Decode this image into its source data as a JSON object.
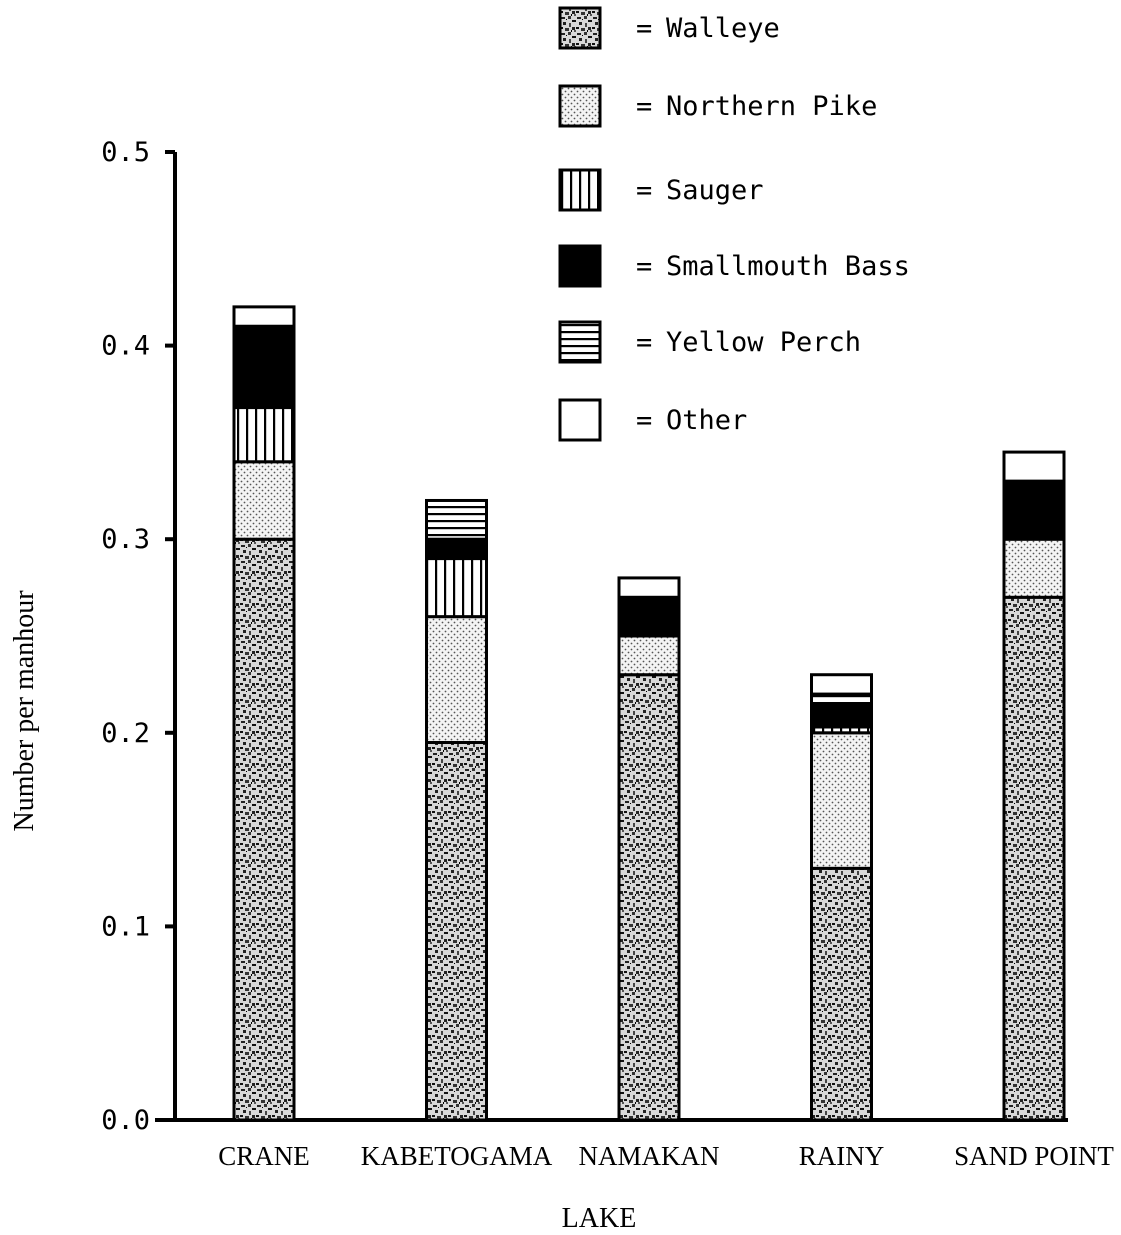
{
  "chart_data": {
    "type": "bar",
    "stacked": true,
    "title": "",
    "xlabel": "LAKE",
    "ylabel": "Number per manhour",
    "ylim": [
      0,
      0.5
    ],
    "yticks": [
      "0.0",
      "0.1",
      "0.2",
      "0.3",
      "0.4",
      "0.5"
    ],
    "grid": false,
    "legend_position": "top-center",
    "categories": [
      "CRANE",
      "KABETOGAMA",
      "NAMAKAN",
      "RAINY",
      "SAND POINT"
    ],
    "series": [
      {
        "name": "Walleye",
        "pattern": "mottled",
        "values": [
          0.3,
          0.195,
          0.23,
          0.13,
          0.27
        ]
      },
      {
        "name": "Northern Pike",
        "pattern": "dots",
        "values": [
          0.04,
          0.065,
          0.02,
          0.07,
          0.03
        ]
      },
      {
        "name": "Sauger",
        "pattern": "vertical-lines",
        "values": [
          0.028,
          0.03,
          0.0,
          0.003,
          0.0
        ]
      },
      {
        "name": "Smallmouth Bass",
        "pattern": "solid-black",
        "values": [
          0.042,
          0.01,
          0.02,
          0.012,
          0.03
        ]
      },
      {
        "name": "Yellow Perch",
        "pattern": "horizontal-lines",
        "values": [
          0.0,
          0.02,
          0.0,
          0.005,
          0.0
        ]
      },
      {
        "name": "Other",
        "pattern": "white",
        "values": [
          0.01,
          0.0,
          0.01,
          0.01,
          0.015
        ]
      }
    ],
    "legend_prefix": "="
  }
}
